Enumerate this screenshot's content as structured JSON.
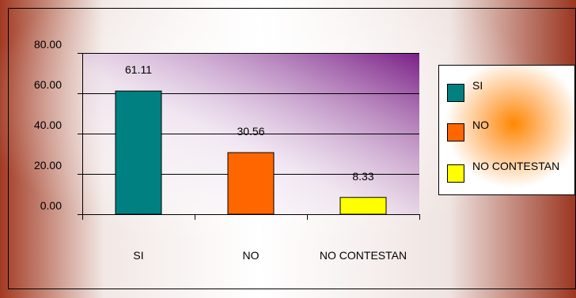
{
  "chart_data": {
    "type": "bar",
    "title": "",
    "xlabel": "",
    "ylabel": "",
    "categories": [
      "SI",
      "NO",
      "NO CONTESTAN"
    ],
    "values": [
      61.11,
      30.56,
      8.33
    ],
    "value_labels": [
      "61.11",
      "30.56",
      "8.33"
    ],
    "colors": [
      "#008080",
      "#ff6600",
      "#ffff00"
    ],
    "ylim": [
      0,
      80
    ],
    "yticks": [
      0,
      20,
      40,
      60,
      80
    ],
    "ytick_labels": [
      "0.00",
      "20.00",
      "40.00",
      "60.00",
      "80.00"
    ],
    "grid": true,
    "legend": {
      "placement": "right",
      "entries": [
        "SI",
        "NO",
        "NO CONTESTAN"
      ]
    }
  },
  "colors": {
    "frame_border": "#000000",
    "gridline": "#000000",
    "accent_dark_red": "#9b3520",
    "plot_purple": "#7a1f86"
  }
}
